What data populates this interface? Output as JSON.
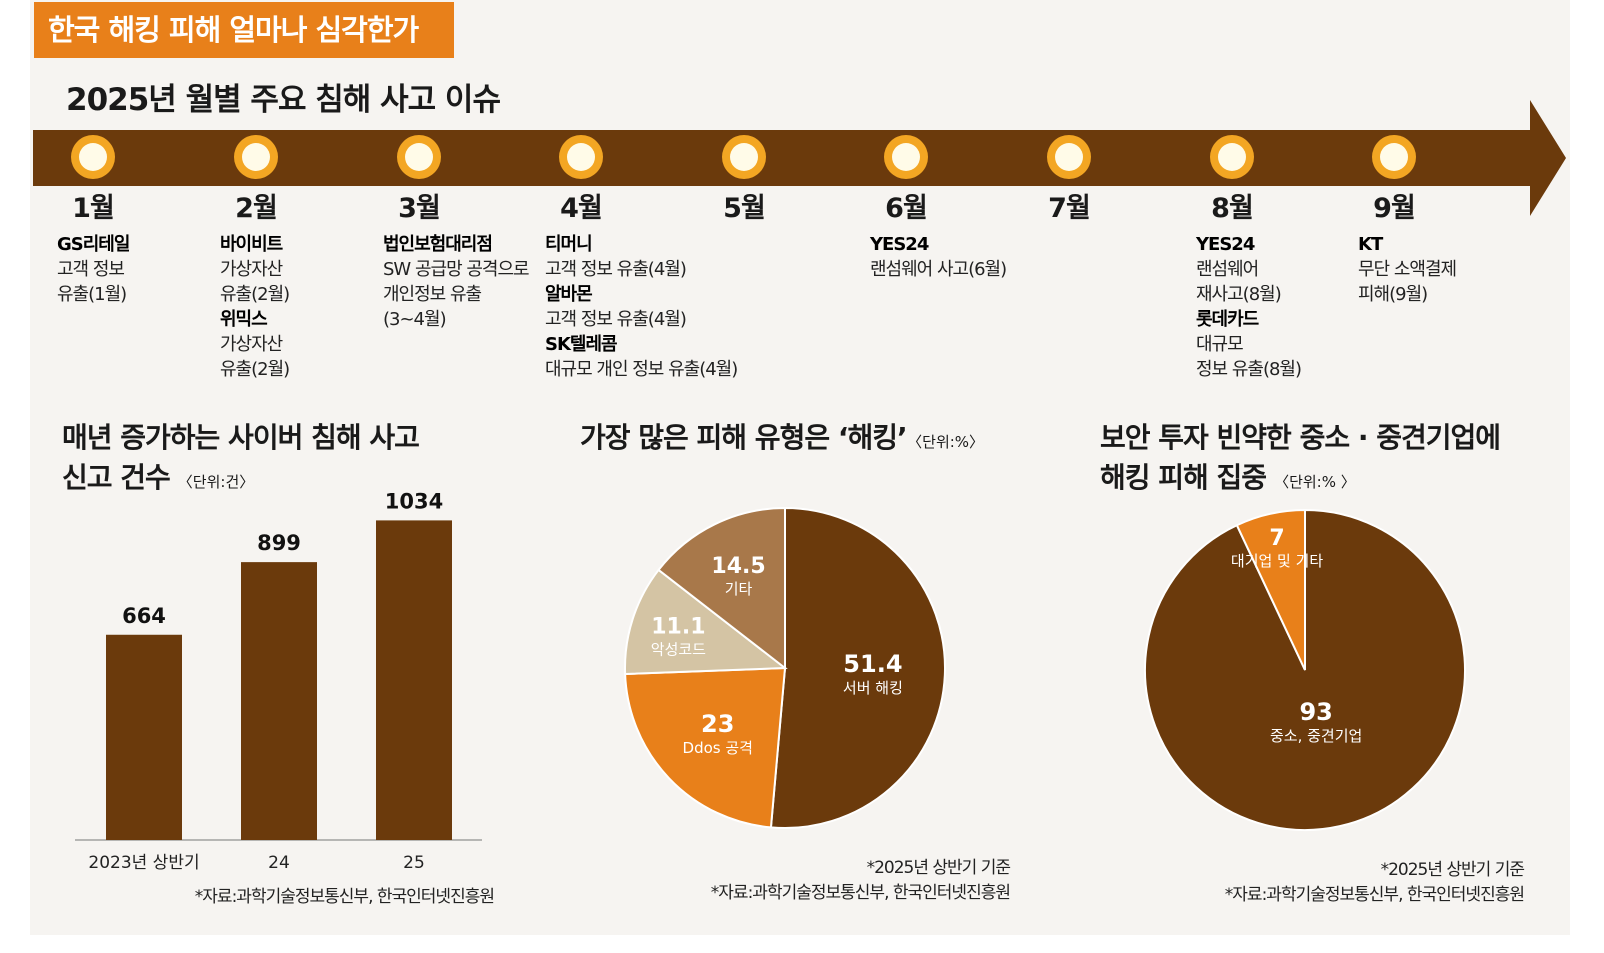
{
  "header": {
    "tab_title": "한국 해킹 피해 얼마나 심각한가"
  },
  "timeline": {
    "title": "2025년 월별 주요 침해 사고 이슈",
    "months": [
      {
        "label": "1월",
        "events": [
          {
            "company": "GS리테일",
            "lines": [
              "고객 정보",
              "유출(1월)"
            ]
          }
        ]
      },
      {
        "label": "2월",
        "events": [
          {
            "company": "바이비트",
            "lines": [
              "가상자산",
              "유출(2월)"
            ]
          },
          {
            "company": "위믹스",
            "lines": [
              "가상자산",
              "유출(2월)"
            ]
          }
        ]
      },
      {
        "label": "3월",
        "events": [
          {
            "company": "법인보험대리점",
            "lines": [
              "SW 공급망 공격으로",
              "개인정보 유출",
              "(3~4월)"
            ]
          }
        ]
      },
      {
        "label": "4월",
        "events": [
          {
            "company": "티머니",
            "lines": [
              "고객 정보 유출(4월)"
            ]
          },
          {
            "company": "알바몬",
            "lines": [
              "고객 정보 유출(4월)"
            ]
          },
          {
            "company": "SK텔레콤",
            "lines": [
              "대규모 개인 정보 유출(4월)"
            ]
          }
        ]
      },
      {
        "label": "5월",
        "events": []
      },
      {
        "label": "6월",
        "events": [
          {
            "company": "YES24",
            "lines": [
              "랜섬웨어 사고(6월)"
            ]
          }
        ]
      },
      {
        "label": "7월",
        "events": []
      },
      {
        "label": "8월",
        "events": [
          {
            "company": "YES24",
            "lines": [
              "랜섬웨어",
              "재사고(8월)"
            ]
          },
          {
            "company": "롯데카드",
            "lines": [
              "대규모",
              "정보 유출(8월)"
            ]
          }
        ]
      },
      {
        "label": "9월",
        "events": [
          {
            "company": "KT",
            "lines": [
              "무단 소액결제",
              "피해(9월)"
            ]
          }
        ]
      }
    ]
  },
  "chart_data": [
    {
      "type": "bar",
      "title_line1": "매년 증가하는 사이버 침해 사고",
      "title_line2": "신고 건수",
      "unit": "〈단위:건〉",
      "categories": [
        "2023년 상반기",
        "24",
        "25"
      ],
      "values": [
        664,
        899,
        1034
      ],
      "ylim": [
        0,
        1100
      ],
      "source": "*자료:과학기술정보통신부, 한국인터넷진흥원"
    },
    {
      "type": "pie",
      "title": "가장 많은 피해 유형은 ‘해킹’",
      "unit": "〈단위:%〉",
      "slices": [
        {
          "label": "서버 해킹",
          "value": 51.4,
          "color": "#6b3a0c"
        },
        {
          "label": "Ddos 공격",
          "value": 23,
          "color": "#e8801a"
        },
        {
          "label": "악성코드",
          "value": 11.1,
          "color": "#d4c4a4"
        },
        {
          "label": "기타",
          "value": 14.5,
          "color": "#a8784a"
        }
      ],
      "note": "*2025년 상반기 기준",
      "source": "*자료:과학기술정보통신부, 한국인터넷진흥원"
    },
    {
      "type": "pie",
      "title_line1": "보안 투자 빈약한 중소 · 중견기업에",
      "title_line2": "해킹 피해 집중",
      "unit": "〈단위:% 〉",
      "slices": [
        {
          "label": "중소, 중견기업",
          "value": 93,
          "color": "#6b3a0c"
        },
        {
          "label": "대기업 및 기타",
          "value": 7,
          "color": "#e8801a"
        }
      ],
      "note": "*2025년 상반기 기준",
      "source": "*자료:과학기술정보통신부, 한국인터넷진흥원"
    }
  ],
  "colors": {
    "brown": "#6b3a0c",
    "orange": "#e8801a",
    "beige": "#d4c4a4",
    "tan": "#a8784a"
  }
}
